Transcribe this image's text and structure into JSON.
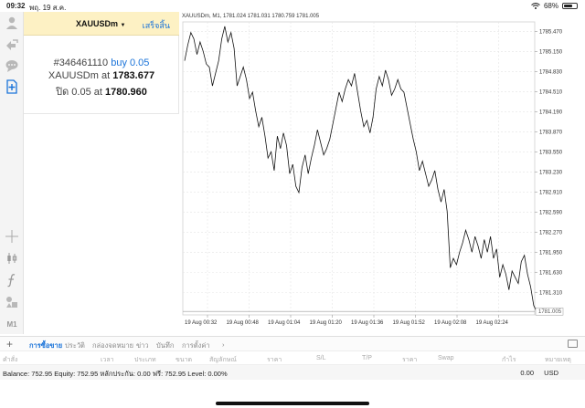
{
  "status_bar": {
    "time": "09:32",
    "date": "พฤ. 19 ส.ค.",
    "battery": "68%",
    "battery_level": 0.68
  },
  "order_panel": {
    "symbol": "XAUUSDm",
    "dropdown_icon": "caret-down-icon",
    "done_label": "เสร็จสิ้น",
    "order_number": "#346461110",
    "order_action": "buy 0.05",
    "symbol_line": "XAUUSDm at",
    "open_price": "1783.677",
    "close_line": "ปิด 0.05 at",
    "close_price": "1780.960"
  },
  "left_toolbar": {
    "icons": [
      "account-icon",
      "trade-icon",
      "chat-icon",
      "new-order-icon",
      "crosshair-icon",
      "indicator-icon",
      "function-icon",
      "objects-icon"
    ],
    "timeframe": "M1"
  },
  "chart_data": {
    "type": "line",
    "title": "XAUUSDm, M1, 1781.024 1781.031 1780.759 1781.005",
    "y_ticks": [
      "1785.470",
      "1785.150",
      "1784.830",
      "1784.510",
      "1784.190",
      "1783.870",
      "1783.550",
      "1783.230",
      "1782.910",
      "1782.590",
      "1782.270",
      "1781.950",
      "1781.630",
      "1781.310"
    ],
    "current_price_label": "1781.005",
    "ylim": [
      1780.95,
      1785.62
    ],
    "x_ticks": [
      "19 Aug 00:32",
      "19 Aug 00:48",
      "19 Aug 01:04",
      "19 Aug 01:20",
      "19 Aug 01:36",
      "19 Aug 01:52",
      "19 Aug 02:08",
      "19 Aug 02:24"
    ],
    "series": [
      {
        "values": [
          1785.0,
          1785.25,
          1785.45,
          1785.35,
          1785.1,
          1785.3,
          1785.15,
          1784.95,
          1784.9,
          1784.6,
          1784.8,
          1785.0,
          1785.35,
          1785.55,
          1785.3,
          1785.45,
          1785.2,
          1784.6,
          1784.75,
          1784.9,
          1784.7,
          1784.4,
          1784.5,
          1784.2,
          1783.95,
          1784.1,
          1783.8,
          1783.45,
          1783.55,
          1783.25,
          1783.8,
          1783.6,
          1783.85,
          1783.65,
          1783.2,
          1783.35,
          1783.0,
          1782.9,
          1783.3,
          1783.5,
          1783.2,
          1783.45,
          1783.65,
          1783.9,
          1783.7,
          1783.5,
          1783.6,
          1783.75,
          1784.0,
          1784.25,
          1784.5,
          1784.35,
          1784.55,
          1784.7,
          1784.6,
          1784.8,
          1784.5,
          1784.2,
          1783.95,
          1784.05,
          1783.85,
          1784.1,
          1784.55,
          1784.75,
          1784.6,
          1784.85,
          1784.7,
          1784.45,
          1784.55,
          1784.7,
          1784.55,
          1784.5,
          1784.25,
          1784.0,
          1783.75,
          1783.55,
          1783.25,
          1783.4,
          1783.2,
          1783.0,
          1783.1,
          1783.25,
          1782.95,
          1782.75,
          1782.95,
          1782.6,
          1781.7,
          1781.85,
          1781.75,
          1781.95,
          1782.1,
          1782.3,
          1782.15,
          1781.95,
          1782.2,
          1782.05,
          1781.85,
          1782.15,
          1781.95,
          1782.2,
          1781.85,
          1782.0,
          1781.55,
          1781.75,
          1781.6,
          1781.35,
          1781.65,
          1781.55,
          1781.45,
          1781.8,
          1781.9,
          1781.6,
          1781.4,
          1781.1,
          1781.0,
          1781.05,
          1781.0
        ]
      }
    ]
  },
  "bottom_tabs": {
    "tabs": [
      "การซื้อขาย",
      "ประวัติ",
      "กล่องจดหมาย",
      "ข่าว",
      "บันทึก",
      "การตั้งค่า"
    ],
    "active": "การซื้อขาย",
    "more_icon": "chevron-right-icon"
  },
  "columns": [
    "คำสั่ง",
    "เวลา",
    "ประเภท",
    "ขนาด",
    "สัญลักษณ์",
    "ราคา",
    "S/L",
    "T/P",
    "ราคา",
    "Swap",
    "กำไร",
    "หมายเหตุ"
  ],
  "balance_row": {
    "summary": "Balance: 752.95 Equity: 752.95 หลักประกัน: 0.00 ฟรี: 752.95 Level: 0.00%",
    "profit": "0.00",
    "currency": "USD"
  }
}
